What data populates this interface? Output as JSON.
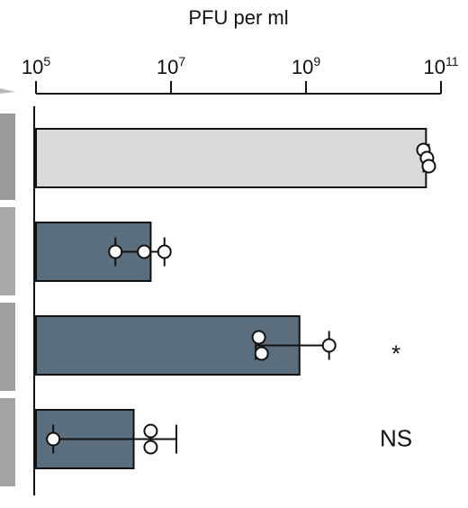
{
  "chart_data": {
    "type": "bar",
    "orientation": "horizontal",
    "xscale": "log",
    "xlabel": "PFU per ml",
    "xlim": [
      100000,
      100000000000
    ],
    "ticks": [
      {
        "base": "10",
        "exp": "5",
        "value": 100000
      },
      {
        "base": "10",
        "exp": "7",
        "value": 10000000
      },
      {
        "base": "10",
        "exp": "9",
        "value": 1000000000
      },
      {
        "base": "10",
        "exp": "11",
        "value": 100000000000
      }
    ],
    "bars": [
      {
        "value": 60000000000,
        "error_low": 55000000000,
        "error_high": 66000000000,
        "points": [
          55000000000,
          62000000000,
          66000000000
        ],
        "color": "#d9d9d9",
        "annotation": ""
      },
      {
        "value": 5000000,
        "error_low": 1500000,
        "error_high": 8000000,
        "points": [
          1500000,
          4000000,
          8000000
        ],
        "color": "#5a6e7e",
        "annotation": ""
      },
      {
        "value": 800000000,
        "error_low": 180000000,
        "error_high": 2200000000,
        "points": [
          200000000,
          220000000,
          2200000000
        ],
        "color": "#5a6e7e",
        "annotation": "*"
      },
      {
        "value": 2800000,
        "error_low": 180000,
        "error_high": 12000000,
        "points": [
          180000,
          5000000,
          5000000
        ],
        "color": "#5a6e7e",
        "annotation": "NS"
      }
    ]
  }
}
